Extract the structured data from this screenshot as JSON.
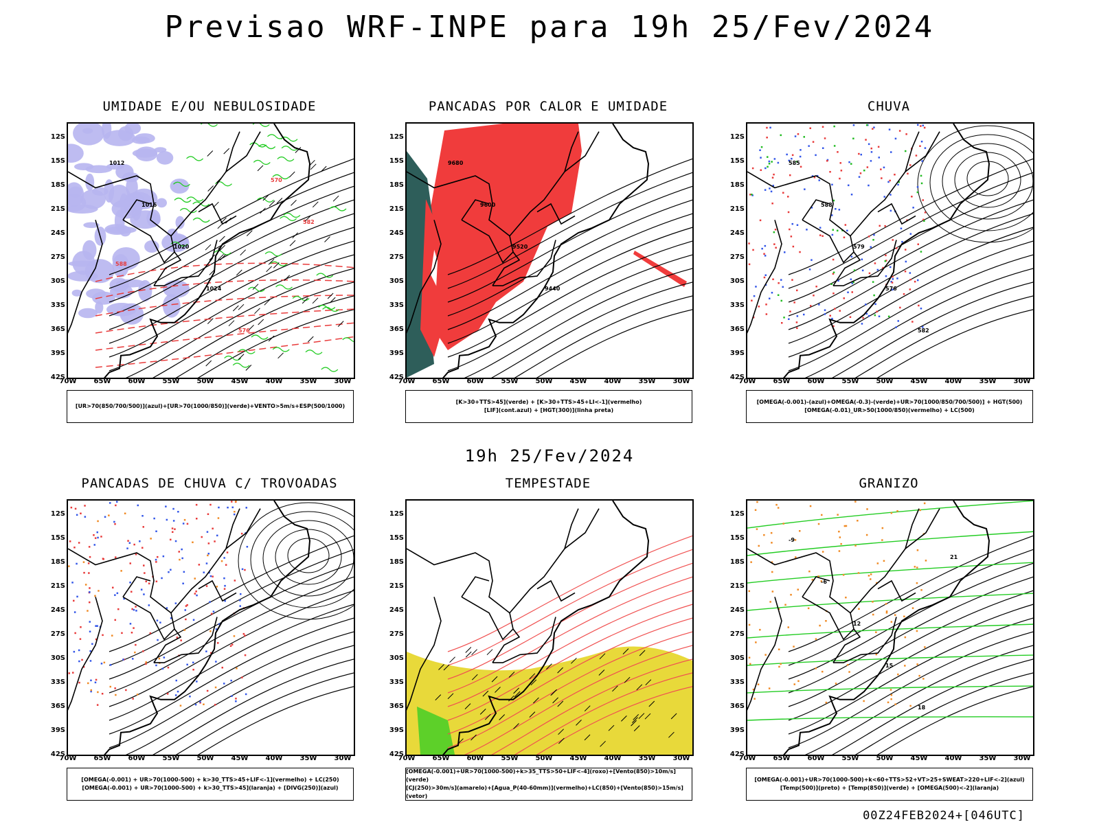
{
  "title": "Previsao WRF-INPE  para 19h 25/Fev/2024",
  "subtitle": "19h 25/Fev/2024",
  "footer": "00Z24FEB2024+[046UTC]",
  "lat_labels": [
    "12S",
    "15S",
    "18S",
    "21S",
    "24S",
    "27S",
    "30S",
    "33S",
    "36S",
    "39S",
    "42S"
  ],
  "lon_labels": [
    "70W",
    "65W",
    "60W",
    "55W",
    "50W",
    "45W",
    "40W",
    "35W",
    "30W"
  ],
  "panels": [
    {
      "title": "UMIDADE E/OU NEBULOSIDADE",
      "legend": [
        "[UR>70(850/700/500)](azul)+[UR>70(1000/850)](verde)+VENTO>5m/s+ESP(500/1000)"
      ],
      "colors": {
        "fill": "#b7b5f0",
        "line1": "#22cc22",
        "line2": "#e83a3a"
      }
    },
    {
      "title": "PANCADAS POR CALOR E UMIDADE",
      "legend": [
        "[K>30+TTS>45](verde) + [K>30+TTS>45+LI<-1](vermelho)",
        "[LIF](cont.azul) + [HGT(300)](linha preta)"
      ],
      "colors": {
        "fill": "#f03c3c",
        "fill2": "#2e5e5a",
        "line": "#3a4ce8"
      }
    },
    {
      "title": "CHUVA",
      "legend": [
        "[OMEGA(-0.001)-(azul)+OMEGA(-0.3)-(verde)+UR>70(1000/850/700/500)] + HGT(500)",
        "[OMEGA(-0.01)_UR>50(1000/850)(vermelho) + LC(500)"
      ],
      "colors": {
        "dot1": "#3356e8",
        "dot2": "#e83a3a",
        "dot3": "#22bb22"
      }
    },
    {
      "title": "PANCADAS DE CHUVA C/ TROVOADAS",
      "legend": [
        "[OMEGA(-0.001) + UR>70(1000-500) + k>30_TTS>45+LIF<-1](vermelho) + LC(250)",
        "[OMEGA(-0.001) + UR>70(1000-500) + k>30_TTS>45](laranja) + [DIVG(250)](azul)"
      ],
      "colors": {
        "dot1": "#e83a3a",
        "dot2": "#3356e8",
        "dot3": "#f08a24"
      }
    },
    {
      "title": "TEMPESTADE",
      "legend": [
        "[OMEGA(-0.001)+UR>70(1000-500)+k>35_TTS>50+LIF<-4](roxo)+[Vento(850)>10m/s](verde)",
        "[CJ(250)>30m/s](amarelo)+[Agua_P(40-60mm)](vermelho)+LC(850)+[Vento(850)>15m/s](vetor)"
      ],
      "colors": {
        "fill": "#e8d93a",
        "line": "#f05050",
        "fill2": "#22cc22"
      }
    },
    {
      "title": "GRANIZO",
      "legend": [
        "[OMEGA(-0.001)+UR>70(1000-500)+k<60+TTS>52+VT>25+SWEAT>220+LIF<-2](azul)",
        "[Temp(500)](preto) + [Temp(850)](verde) + [OMEGA(500)<-2](laranja)"
      ],
      "colors": {
        "line": "#22cc22",
        "line2": "#000000",
        "dot": "#f08a24"
      }
    }
  ],
  "contour_labels": {
    "panel1": [
      "1012",
      "1016",
      "1020",
      "1024",
      "576",
      "570",
      "582",
      "588"
    ],
    "panel2": [
      "9680",
      "9600",
      "9520",
      "9440"
    ],
    "panel3": [
      "585",
      "588",
      "579",
      "576",
      "582"
    ],
    "panel6": [
      "-9",
      "-6",
      "12",
      "15",
      "18",
      "21"
    ]
  }
}
